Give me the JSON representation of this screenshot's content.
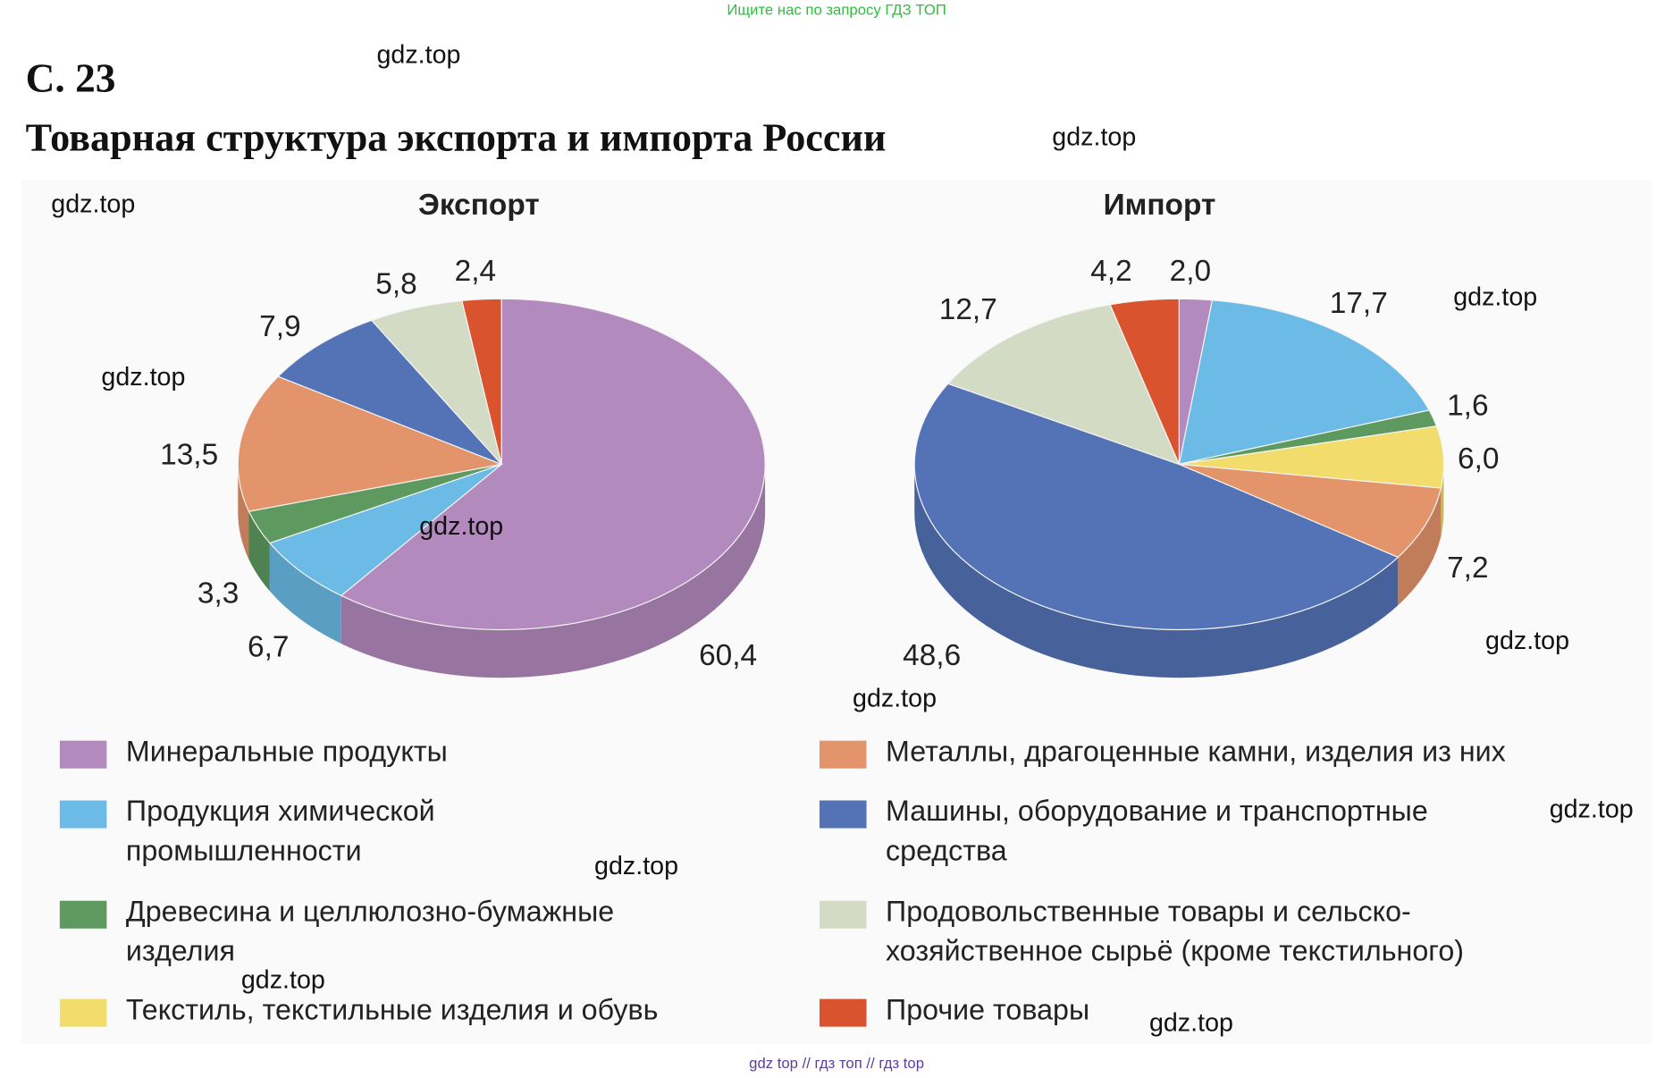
{
  "header_note": "Ищите нас по запросу ГДЗ ТОП",
  "page_label": "С. 23",
  "title": "Товарная структура экспорта и импорта России",
  "watermark": "gdz.top",
  "footer": "gdz top  //  гдз топ  //  гдз top",
  "chart_data": [
    {
      "type": "pie",
      "title": "Экспорт",
      "unit": "%",
      "categories": [
        "Минеральные продукты",
        "Продукция химической промышленности",
        "Древесина и целлюлозно-бумажные изделия",
        "Металлы, драгоценные камни, изделия из них",
        "Машины, оборудование и транспортные средства",
        "Продовольственные товары и сельскохозяйственное сырьё (кроме текстильного)",
        "Прочие товары"
      ],
      "values": [
        60.4,
        6.7,
        3.3,
        13.5,
        7.9,
        5.8,
        2.4
      ],
      "labels": [
        "60,4",
        "6,7",
        "3,3",
        "13,5",
        "7,9",
        "5,8",
        "2,4"
      ],
      "colors": [
        "#b38abd",
        "#6cbbe6",
        "#5e9a60",
        "#e4946a",
        "#5473b7",
        "#d3dbc5",
        "#d9532f"
      ]
    },
    {
      "type": "pie",
      "title": "Импорт",
      "unit": "%",
      "categories": [
        "Минеральные продукты",
        "Продукция химической промышленности",
        "Древесина и целлюлозно-бумажные изделия",
        "Текстиль, текстильные изделия и обувь",
        "Металлы, драгоценные камни, изделия из них",
        "Машины, оборудование и транспортные средства",
        "Продовольственные товары и сельскохозяйственное сырьё (кроме текстильного)",
        "Прочие товары"
      ],
      "values": [
        2.0,
        17.7,
        1.6,
        6.0,
        7.2,
        48.6,
        12.7,
        4.2
      ],
      "labels": [
        "2,0",
        "17,7",
        "1,6",
        "6,0",
        "7,2",
        "48,6",
        "12,7",
        "4,2"
      ],
      "colors": [
        "#b38abd",
        "#6cbbe6",
        "#5e9a60",
        "#f1dc6c",
        "#e4946a",
        "#5473b7",
        "#d3dbc5",
        "#d9532f"
      ]
    }
  ],
  "legend": [
    {
      "label": "Минеральные продукты",
      "color": "#b38abd"
    },
    {
      "label": "Продукция химической\nпромышленности",
      "color": "#6cbbe6"
    },
    {
      "label": "Древесина и целлюлозно-бумажные\nизделия",
      "color": "#5e9a60"
    },
    {
      "label": "Текстиль, текстильные изделия и обувь",
      "color": "#f1dc6c"
    },
    {
      "label": "Металлы, драгоценные камни, изделия из них",
      "color": "#e4946a"
    },
    {
      "label": "Машины, оборудование и транспортные\nсредства",
      "color": "#5473b7"
    },
    {
      "label": "Продовольственные товары и сельско-\nхозяйственное сырьё (кроме текстильного)",
      "color": "#d3dbc5"
    },
    {
      "label": "Прочие товары",
      "color": "#d9532f"
    }
  ]
}
